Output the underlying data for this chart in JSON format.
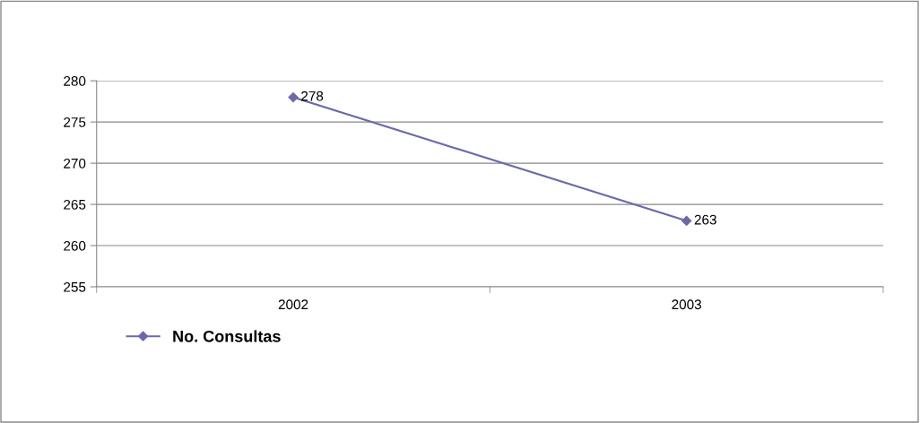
{
  "chart_data": {
    "type": "line",
    "categories": [
      "2002",
      "2003"
    ],
    "series": [
      {
        "name": "No. Consultas",
        "color": "#6a6aaa",
        "values": [
          278,
          263
        ]
      }
    ],
    "ylim": [
      255,
      280
    ],
    "yticks": [
      255,
      260,
      265,
      270,
      275,
      280
    ],
    "grid": "y",
    "legend": "bottom",
    "marker": "diamond",
    "line_style": "solid",
    "data_labels": true
  }
}
